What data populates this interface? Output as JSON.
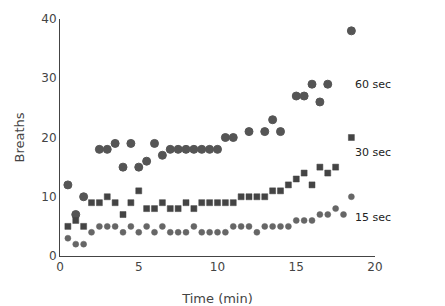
{
  "chart_data": {
    "type": "scatter",
    "xlabel": "Time (min)",
    "ylabel": "Breaths",
    "xlim": [
      0,
      20
    ],
    "ylim": [
      0,
      40
    ],
    "xticks": [
      0,
      5,
      10,
      15,
      20
    ],
    "yticks": [
      0,
      10,
      20,
      30,
      40
    ],
    "grid": false,
    "series": [
      {
        "name": "60 sec",
        "color": "#555555",
        "marker": "triangle-open",
        "x": [
          0.5,
          1.0,
          1.5,
          2.5,
          3.0,
          3.5,
          4.0,
          4.5,
          5.0,
          5.5,
          6.0,
          6.5,
          7.0,
          7.5,
          8.0,
          8.5,
          9.0,
          9.5,
          10.0,
          10.5,
          11.0,
          12.0,
          13.0,
          13.5,
          14.0,
          15.0,
          15.5,
          16.0,
          16.5,
          17.0,
          18.5
        ],
        "values": [
          12,
          7,
          10,
          18,
          18,
          19,
          15,
          19,
          15,
          16,
          19,
          17,
          18,
          18,
          18,
          18,
          18,
          18,
          18,
          20,
          20,
          21,
          21,
          23,
          21,
          27,
          27,
          29,
          26,
          29,
          38
        ]
      },
      {
        "name": "30 sec",
        "color": "#444444",
        "marker": "square",
        "x": [
          0.5,
          1.0,
          1.5,
          2.0,
          2.5,
          3.0,
          3.5,
          4.0,
          4.5,
          5.0,
          5.5,
          6.0,
          6.5,
          7.0,
          7.5,
          8.0,
          8.5,
          9.0,
          9.5,
          10.0,
          10.5,
          11.0,
          11.5,
          12.0,
          12.5,
          13.0,
          13.5,
          14.0,
          14.5,
          15.0,
          15.5,
          16.0,
          16.5,
          17.0,
          17.5,
          18.5
        ],
        "values": [
          5,
          6,
          5,
          9,
          9,
          10,
          9,
          7,
          9,
          11,
          8,
          8,
          9,
          8,
          8,
          9,
          8,
          9,
          9,
          9,
          9,
          9,
          10,
          10,
          10,
          10,
          11,
          11,
          12,
          13,
          14,
          12,
          15,
          14,
          15,
          20
        ]
      },
      {
        "name": "15 sec",
        "color": "#666666",
        "marker": "circle",
        "x": [
          0.5,
          1.0,
          1.5,
          2.0,
          2.5,
          3.0,
          3.5,
          4.0,
          4.5,
          5.0,
          5.5,
          6.0,
          6.5,
          7.0,
          7.5,
          8.0,
          8.5,
          9.0,
          9.5,
          10.0,
          10.5,
          11.0,
          11.5,
          12.0,
          12.5,
          13.0,
          13.5,
          14.0,
          14.5,
          15.0,
          15.5,
          16.0,
          16.5,
          17.0,
          17.5,
          18.0,
          18.5
        ],
        "values": [
          3,
          2,
          2,
          4,
          5,
          5,
          5,
          4,
          5,
          4,
          5,
          4,
          5,
          4,
          4,
          4,
          5,
          4,
          4,
          4,
          4,
          5,
          5,
          5,
          4,
          5,
          5,
          5,
          5,
          6,
          6,
          6,
          7,
          7,
          8,
          7,
          10
        ]
      }
    ],
    "annotations": [
      {
        "x": 18.6,
        "y": 29.0,
        "text": "60 sec"
      },
      {
        "x": 18.6,
        "y": 17.5,
        "text": "30 sec"
      },
      {
        "x": 18.6,
        "y": 6.5,
        "text": "15 sec"
      }
    ]
  }
}
